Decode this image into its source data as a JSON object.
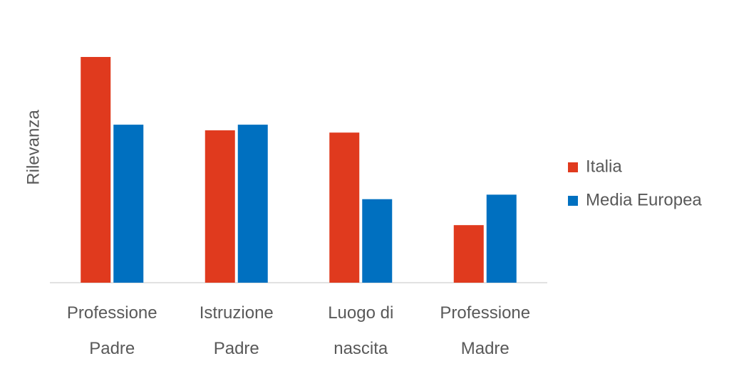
{
  "chart_data": {
    "type": "bar",
    "y_label": "Rilevanza",
    "categories": [
      "Professione Padre",
      "Istruzione Padre",
      "Luogo di nascita",
      "Professione Madre"
    ],
    "series": [
      {
        "name": "Italia",
        "color": "#e03a1e",
        "values": [
          100,
          67.5,
          66.5,
          25.5
        ]
      },
      {
        "name": "Media Europea",
        "color": "#0070c0",
        "values": [
          70,
          70,
          37,
          39
        ]
      }
    ],
    "ylim": [
      0,
      100
    ]
  }
}
